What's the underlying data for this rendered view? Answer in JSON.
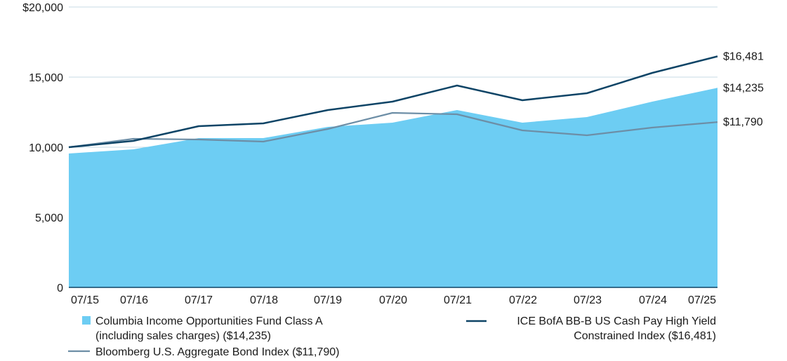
{
  "chart_data": {
    "type": "area",
    "x": [
      "07/15",
      "07/16",
      "07/17",
      "07/18",
      "07/19",
      "07/20",
      "07/21",
      "07/22",
      "07/23",
      "07/24",
      "07/25"
    ],
    "ylim": [
      0,
      20000
    ],
    "yticks": [
      "0",
      "5,000",
      "10,000",
      "15,000",
      "$20,000"
    ],
    "ytick_values": [
      0,
      5000,
      10000,
      15000,
      20000
    ],
    "grid": true,
    "legend_placement": "bottom",
    "series": [
      {
        "name": "Columbia Income Opportunities Fund Class A (including sales charges) ($14,235)",
        "legend_lines": [
          "Columbia Income Opportunities Fund Class A",
          "(including sales charges) ($14,235)"
        ],
        "kind": "area",
        "color": "#6dcdf3",
        "end_label": "$14,235",
        "values": [
          9550,
          9850,
          10650,
          10650,
          11450,
          11750,
          12650,
          11750,
          12150,
          13250,
          14235
        ]
      },
      {
        "name": "ICE BofA BB-B US Cash Pay High Yield Constrained Index ($16,481)",
        "legend_lines": [
          "ICE BofA BB-B US Cash Pay High Yield",
          "Constrained Index ($16,481)"
        ],
        "kind": "line",
        "color": "#0e4466",
        "end_label": "$16,481",
        "values": [
          10000,
          10450,
          11500,
          11700,
          12650,
          13250,
          14400,
          13350,
          13850,
          15300,
          16481
        ]
      },
      {
        "name": "Bloomberg U.S. Aggregate Bond Index ($11,790)",
        "legend_lines": [
          "Bloomberg U.S. Aggregate Bond Index ($11,790)"
        ],
        "kind": "line",
        "color": "#6d8ea6",
        "end_label": "$11,790",
        "values": [
          10000,
          10600,
          10550,
          10400,
          11300,
          12450,
          12350,
          11200,
          10850,
          11400,
          11790
        ]
      }
    ]
  }
}
